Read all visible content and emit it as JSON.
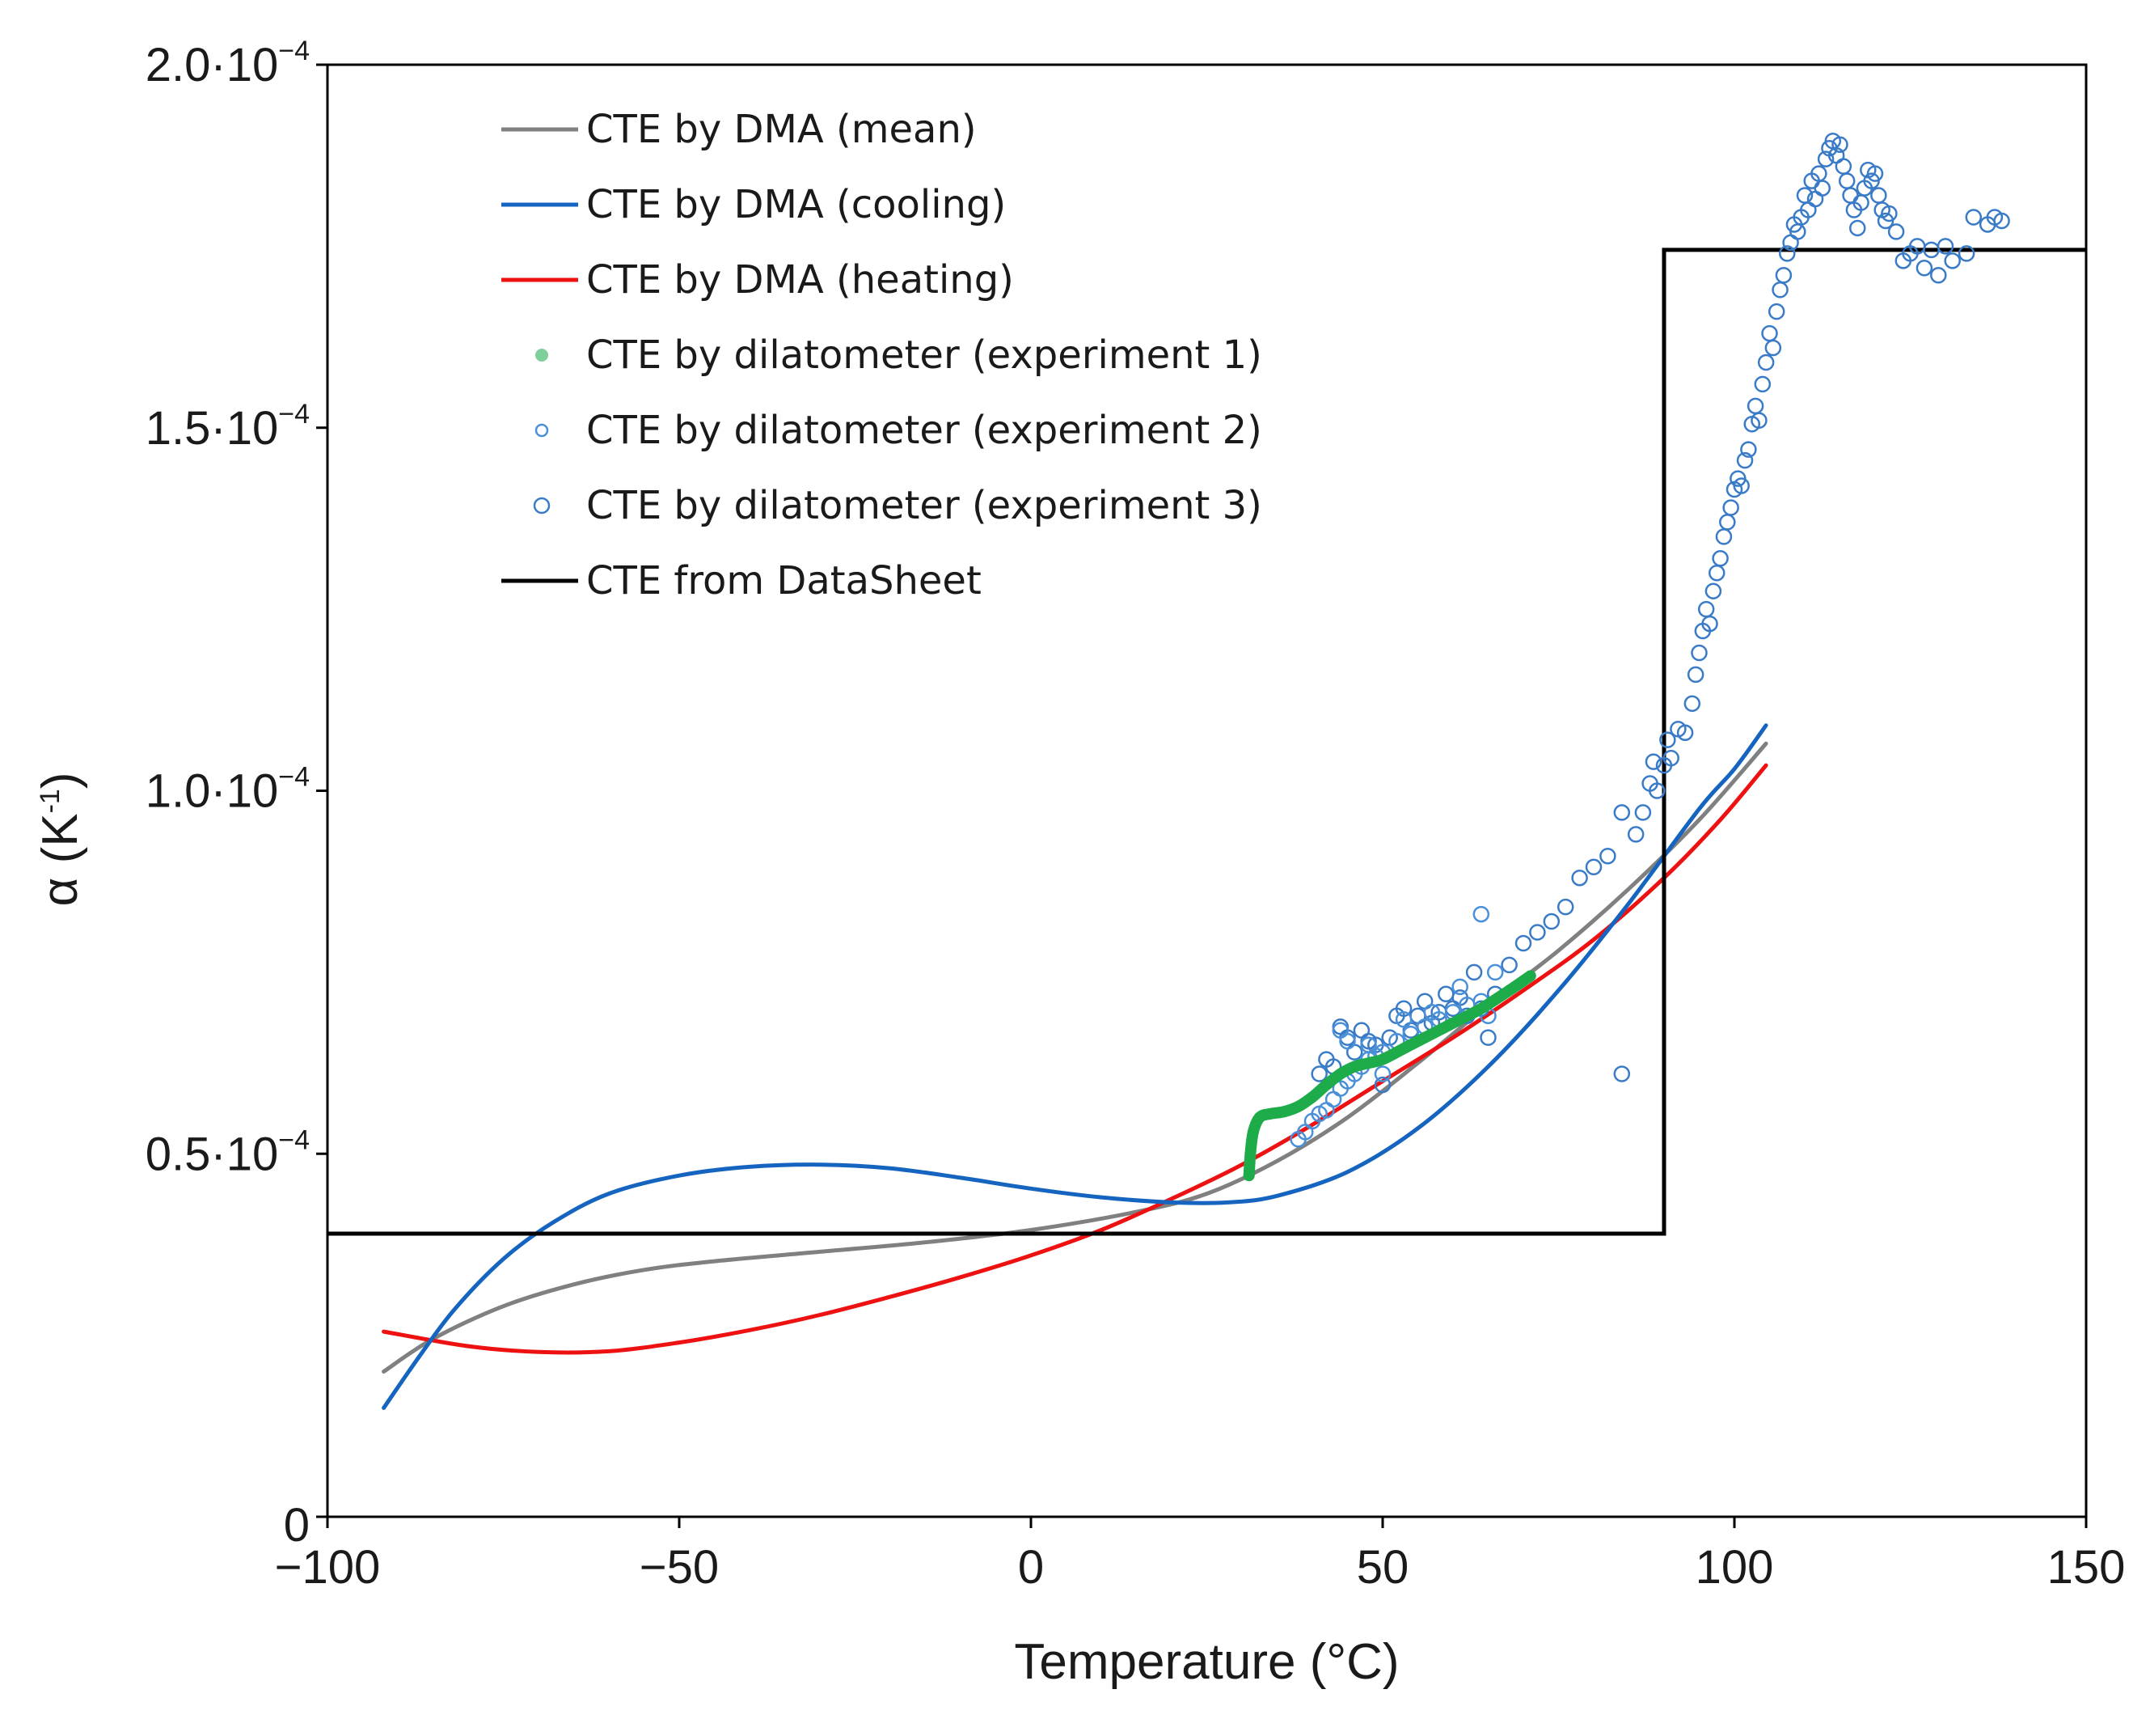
{
  "chart_data": {
    "type": "line",
    "title": "",
    "xlabel": "Temperature  (°C)",
    "ylabel_parts": {
      "base": "α (K",
      "exp": "-1",
      "close": ")"
    },
    "xlim": [
      -100,
      150
    ],
    "ylim": [
      0,
      0.0002
    ],
    "x_ticks": [
      {
        "value": -100,
        "label": "−100"
      },
      {
        "value": -50,
        "label": "−50"
      },
      {
        "value": 0,
        "label": "0"
      },
      {
        "value": 50,
        "label": "50"
      },
      {
        "value": 100,
        "label": "100"
      },
      {
        "value": 150,
        "label": "150"
      }
    ],
    "y_ticks": [
      {
        "value": 0,
        "mantissa": "0",
        "exp": ""
      },
      {
        "value": 5e-05,
        "mantissa": "0.5·10",
        "exp": "−4"
      },
      {
        "value": 0.0001,
        "mantissa": "1.0·10",
        "exp": "−4"
      },
      {
        "value": 0.00015,
        "mantissa": "1.5·10",
        "exp": "−4"
      },
      {
        "value": 0.0002,
        "mantissa": "2.0·10",
        "exp": "−4"
      }
    ],
    "grid": false,
    "legend_position": "top-left",
    "series": [
      {
        "name": "CTE by DMA (mean)",
        "kind": "line",
        "color": "#808080",
        "points": [
          [
            -92,
            2e-05
          ],
          [
            -85,
            2.45e-05
          ],
          [
            -75,
            2.9e-05
          ],
          [
            -65,
            3.2e-05
          ],
          [
            -55,
            3.4e-05
          ],
          [
            -45,
            3.52e-05
          ],
          [
            -30,
            3.65e-05
          ],
          [
            -15,
            3.78e-05
          ],
          [
            0,
            3.95e-05
          ],
          [
            15,
            4.2e-05
          ],
          [
            25,
            4.45e-05
          ],
          [
            35,
            4.9e-05
          ],
          [
            45,
            5.5e-05
          ],
          [
            55,
            6.25e-05
          ],
          [
            65,
            7.05e-05
          ],
          [
            75,
            7.8e-05
          ],
          [
            85,
            8.65e-05
          ],
          [
            95,
            9.6e-05
          ],
          [
            104.5,
            0.0001065
          ]
        ]
      },
      {
        "name": "CTE by DMA (cooling)",
        "kind": "line",
        "color": "#1565c0",
        "points": [
          [
            -92,
            1.5e-05
          ],
          [
            -87,
            2.2e-05
          ],
          [
            -82,
            2.85e-05
          ],
          [
            -75,
            3.55e-05
          ],
          [
            -68,
            4.05e-05
          ],
          [
            -60,
            4.45e-05
          ],
          [
            -50,
            4.7e-05
          ],
          [
            -40,
            4.82e-05
          ],
          [
            -30,
            4.85e-05
          ],
          [
            -20,
            4.8e-05
          ],
          [
            -10,
            4.67e-05
          ],
          [
            0,
            4.52e-05
          ],
          [
            10,
            4.4e-05
          ],
          [
            20,
            4.33e-05
          ],
          [
            28,
            4.33e-05
          ],
          [
            35,
            4.42e-05
          ],
          [
            45,
            4.75e-05
          ],
          [
            55,
            5.35e-05
          ],
          [
            65,
            6.2e-05
          ],
          [
            75,
            7.25e-05
          ],
          [
            85,
            8.45e-05
          ],
          [
            95,
            9.75e-05
          ],
          [
            100,
            0.000103
          ],
          [
            104.5,
            0.000109
          ]
        ]
      },
      {
        "name": "CTE by DMA (heating)",
        "kind": "line",
        "color": "#ee1111",
        "points": [
          [
            -92,
            2.55e-05
          ],
          [
            -80,
            2.35e-05
          ],
          [
            -70,
            2.27e-05
          ],
          [
            -60,
            2.28e-05
          ],
          [
            -50,
            2.4e-05
          ],
          [
            -40,
            2.57e-05
          ],
          [
            -30,
            2.78e-05
          ],
          [
            -20,
            3.03e-05
          ],
          [
            -10,
            3.3e-05
          ],
          [
            0,
            3.6e-05
          ],
          [
            10,
            3.95e-05
          ],
          [
            20,
            4.38e-05
          ],
          [
            30,
            4.85e-05
          ],
          [
            40,
            5.4e-05
          ],
          [
            50,
            6e-05
          ],
          [
            60,
            6.6e-05
          ],
          [
            70,
            7.25e-05
          ],
          [
            80,
            7.95e-05
          ],
          [
            90,
            8.8e-05
          ],
          [
            98,
            9.6e-05
          ],
          [
            104.5,
            0.0001035
          ]
        ]
      },
      {
        "name": "CTE by dilatometer (experiment 1)",
        "kind": "dense",
        "color": "#1eac4b",
        "points": [
          [
            31,
            4.7e-05
          ],
          [
            31.2,
            5e-05
          ],
          [
            31.6,
            5.3e-05
          ],
          [
            32.5,
            5.5e-05
          ],
          [
            34,
            5.55e-05
          ],
          [
            36,
            5.58e-05
          ],
          [
            38,
            5.65e-05
          ],
          [
            40,
            5.78e-05
          ],
          [
            42,
            5.95e-05
          ],
          [
            44,
            6.1e-05
          ],
          [
            46,
            6.2e-05
          ],
          [
            48,
            6.25e-05
          ],
          [
            50,
            6.3e-05
          ],
          [
            53,
            6.45e-05
          ],
          [
            56,
            6.6e-05
          ],
          [
            60,
            6.8e-05
          ],
          [
            64,
            7e-05
          ],
          [
            68,
            7.25e-05
          ],
          [
            71,
            7.45e-05
          ]
        ]
      },
      {
        "name": "CTE by dilatometer (experiment 2)",
        "kind": "circles",
        "color": "#4a90d9",
        "points": [
          [
            38,
            5.2e-05
          ],
          [
            39,
            5.3e-05
          ],
          [
            40,
            5.45e-05
          ],
          [
            41,
            5.55e-05
          ],
          [
            42,
            5.6e-05
          ],
          [
            43,
            5.75e-05
          ],
          [
            44,
            5.9e-05
          ],
          [
            45,
            6e-05
          ],
          [
            46,
            6.1e-05
          ],
          [
            47,
            6.2e-05
          ],
          [
            48,
            6.3e-05
          ],
          [
            49,
            6.35e-05
          ],
          [
            50,
            6.4e-05
          ],
          [
            52,
            6.55e-05
          ],
          [
            54,
            6.65e-05
          ],
          [
            56,
            6.75e-05
          ],
          [
            58,
            6.85e-05
          ],
          [
            60,
            6.95e-05
          ],
          [
            62,
            7.05e-05
          ],
          [
            64,
            7.1e-05
          ],
          [
            65,
            6.9e-05
          ],
          [
            44,
            6.7e-05
          ],
          [
            48,
            6.5e-05
          ],
          [
            53,
            6.85e-05
          ],
          [
            57,
            6.95e-05
          ],
          [
            61,
            7.3e-05
          ],
          [
            64,
            8.3e-05
          ],
          [
            66,
            7.5e-05
          ],
          [
            45,
            6.55e-05
          ],
          [
            50,
            6.1e-05
          ]
        ]
      },
      {
        "name": "CTE by dilatometer (experiment 3)",
        "kind": "circles",
        "color": "#3a7bc8",
        "points": [
          [
            41,
            6.1e-05
          ],
          [
            42,
            6.3e-05
          ],
          [
            43,
            6.2e-05
          ],
          [
            44,
            6.75e-05
          ],
          [
            45,
            6.6e-05
          ],
          [
            46,
            6.4e-05
          ],
          [
            47,
            6.7e-05
          ],
          [
            48,
            6.55e-05
          ],
          [
            49,
            6.5e-05
          ],
          [
            50,
            5.95e-05
          ],
          [
            51,
            6.6e-05
          ],
          [
            52,
            6.9e-05
          ],
          [
            53,
            7e-05
          ],
          [
            54,
            6.7e-05
          ],
          [
            55,
            6.9e-05
          ],
          [
            56,
            7.1e-05
          ],
          [
            57,
            6.8e-05
          ],
          [
            58,
            6.95e-05
          ],
          [
            59,
            7.2e-05
          ],
          [
            60,
            7e-05
          ],
          [
            61,
            7.15e-05
          ],
          [
            62,
            6.9e-05
          ],
          [
            63,
            7.5e-05
          ],
          [
            64,
            7e-05
          ],
          [
            65,
            6.6e-05
          ],
          [
            66,
            7.2e-05
          ],
          [
            68,
            7.6e-05
          ],
          [
            70,
            7.9e-05
          ],
          [
            72,
            8.05e-05
          ],
          [
            74,
            8.2e-05
          ],
          [
            76,
            8.4e-05
          ],
          [
            78,
            8.8e-05
          ],
          [
            80,
            8.95e-05
          ],
          [
            82,
            9.1e-05
          ],
          [
            84,
            9.7e-05
          ],
          [
            84,
            6.1e-05
          ],
          [
            86,
            9.4e-05
          ],
          [
            87,
            9.7e-05
          ],
          [
            88,
            0.000101
          ],
          [
            88.5,
            0.000104
          ],
          [
            89,
            0.0001
          ],
          [
            90,
            0.0001035
          ],
          [
            90.5,
            0.000107
          ],
          [
            91,
            0.0001045
          ],
          [
            92,
            0.0001085
          ],
          [
            93,
            0.000108
          ],
          [
            94,
            0.000112
          ],
          [
            94.5,
            0.000116
          ],
          [
            95,
            0.000119
          ],
          [
            95.5,
            0.000122
          ],
          [
            96,
            0.000125
          ],
          [
            96.5,
            0.000123
          ],
          [
            97,
            0.0001275
          ],
          [
            97.5,
            0.00013
          ],
          [
            98,
            0.000132
          ],
          [
            98.5,
            0.000135
          ],
          [
            99,
            0.000137
          ],
          [
            99.5,
            0.000139
          ],
          [
            100,
            0.0001415
          ],
          [
            100.5,
            0.000143
          ],
          [
            101,
            0.000142
          ],
          [
            101.5,
            0.0001455
          ],
          [
            102,
            0.000147
          ],
          [
            102.5,
            0.0001505
          ],
          [
            103,
            0.000153
          ],
          [
            103.5,
            0.000151
          ],
          [
            104,
            0.000156
          ],
          [
            104.5,
            0.000159
          ],
          [
            105,
            0.000163
          ],
          [
            105.5,
            0.000161
          ],
          [
            106,
            0.000166
          ],
          [
            106.5,
            0.000169
          ],
          [
            107,
            0.000171
          ],
          [
            107.5,
            0.000174
          ],
          [
            108,
            0.0001755
          ],
          [
            108.5,
            0.000178
          ],
          [
            109,
            0.000177
          ],
          [
            109.5,
            0.000179
          ],
          [
            110,
            0.000182
          ],
          [
            110.5,
            0.00018
          ],
          [
            111,
            0.000184
          ],
          [
            111.5,
            0.0001815
          ],
          [
            112,
            0.000185
          ],
          [
            112.5,
            0.000183
          ],
          [
            113,
            0.000187
          ],
          [
            113.5,
            0.0001885
          ],
          [
            114,
            0.0001895
          ],
          [
            114.5,
            0.0001875
          ],
          [
            115,
            0.000189
          ],
          [
            115.5,
            0.000186
          ],
          [
            116,
            0.000184
          ],
          [
            116.5,
            0.000182
          ],
          [
            117,
            0.00018
          ],
          [
            117.5,
            0.0001775
          ],
          [
            118,
            0.000181
          ],
          [
            118.5,
            0.000183
          ],
          [
            119,
            0.0001855
          ],
          [
            119.5,
            0.000184
          ],
          [
            120,
            0.000185
          ],
          [
            120.5,
            0.000182
          ],
          [
            121,
            0.00018
          ],
          [
            121.5,
            0.0001785
          ],
          [
            122,
            0.0001795
          ],
          [
            123,
            0.000177
          ],
          [
            124,
            0.000173
          ],
          [
            125,
            0.000174
          ],
          [
            126,
            0.000175
          ],
          [
            127,
            0.000172
          ],
          [
            128,
            0.0001745
          ],
          [
            129,
            0.000171
          ],
          [
            130,
            0.000175
          ],
          [
            131,
            0.000173
          ],
          [
            133,
            0.000174
          ],
          [
            134,
            0.000179
          ],
          [
            136,
            0.000178
          ],
          [
            137,
            0.000179
          ],
          [
            138,
            0.0001785
          ]
        ]
      },
      {
        "name": "CTE from DataSheet",
        "kind": "step",
        "color": "#000000",
        "points": [
          [
            -100,
            3.9e-05
          ],
          [
            90,
            3.9e-05
          ],
          [
            90,
            0.0001745
          ],
          [
            150,
            0.0001745
          ]
        ]
      }
    ]
  }
}
